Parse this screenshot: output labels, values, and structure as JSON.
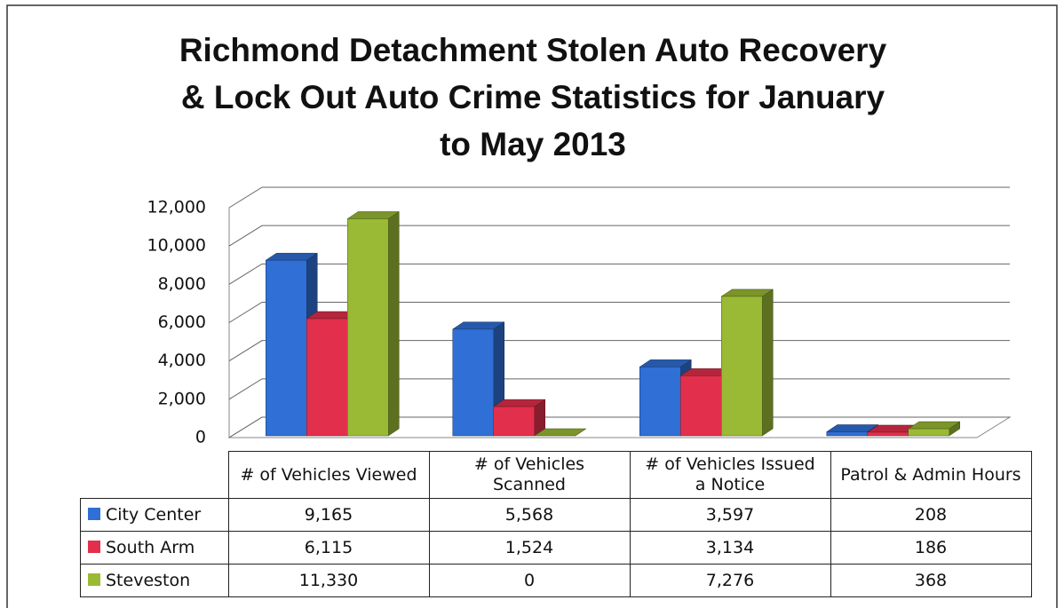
{
  "chart_data": {
    "type": "bar3d",
    "title": "Richmond Detachment Stolen Auto Recovery & Lock Out Auto Crime Statistics for January to May 2013",
    "categories": [
      "# of Vehicles Viewed",
      "# of Vehicles Scanned",
      "# of Vehicles Issued a Notice",
      "Patrol & Admin Hours"
    ],
    "series": [
      {
        "name": "City Center",
        "color": "#2f6fd6",
        "values": [
          9165,
          5568,
          3597,
          208
        ],
        "value_labels": [
          "9,165",
          "5,568",
          "3,597",
          "208"
        ]
      },
      {
        "name": "South Arm",
        "color": "#e2304c",
        "values": [
          6115,
          1524,
          3134,
          186
        ],
        "value_labels": [
          "6,115",
          "1,524",
          "3,134",
          "186"
        ]
      },
      {
        "name": "Steveston",
        "color": "#9aba35",
        "values": [
          11330,
          0,
          7276,
          368
        ],
        "value_labels": [
          "11,330",
          "0",
          "7,276",
          "368"
        ]
      }
    ],
    "ylim": [
      0,
      12000
    ],
    "yticks": [
      0,
      {
        "value": 2000,
        "label": "2,000"
      },
      {
        "value": 4000,
        "label": "4,000"
      },
      {
        "value": 6000,
        "label": "6,000"
      },
      {
        "value": 8000,
        "label": "8,000"
      },
      {
        "value": 10000,
        "label": "10,000"
      },
      {
        "value": 12000,
        "label": "12,000"
      }
    ],
    "grid": true
  }
}
